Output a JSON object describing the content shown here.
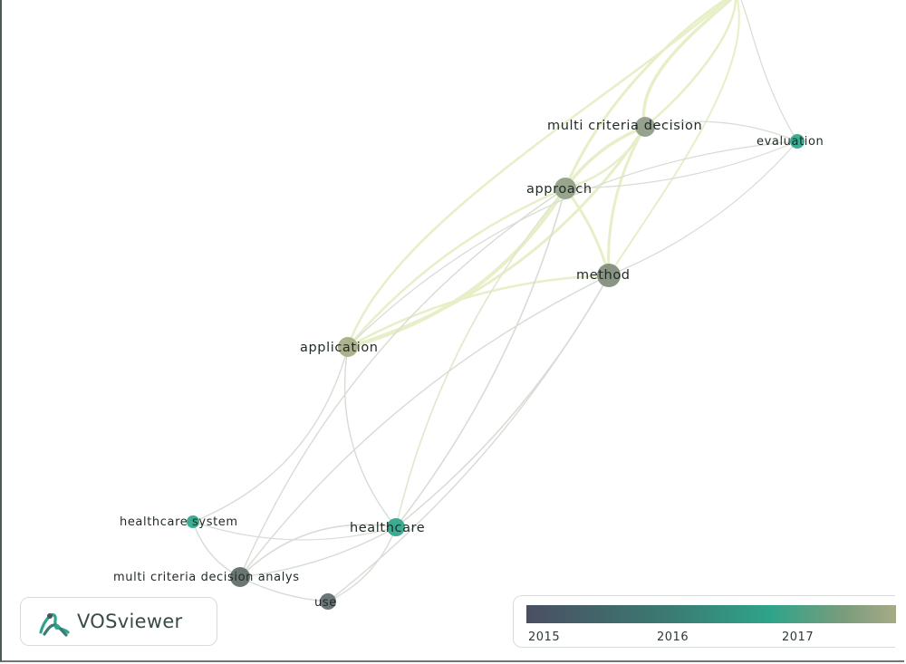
{
  "app": {
    "name": "VOSviewer"
  },
  "nodes": [
    {
      "id": "mcd",
      "label": "multi criteria decision",
      "color": "#8d9a86"
    },
    {
      "id": "eval",
      "label": "evaluation",
      "color": "#2ea48a"
    },
    {
      "id": "appr",
      "label": "approach",
      "color": "#8f9e86"
    },
    {
      "id": "meth",
      "label": "method",
      "color": "#7f8c7b"
    },
    {
      "id": "appl",
      "label": "application",
      "color": "#a6ab86"
    },
    {
      "id": "hsys",
      "label": "healthcare system",
      "color": "#2ea48a"
    },
    {
      "id": "hc",
      "label": "healthcare",
      "color": "#2ea48a"
    },
    {
      "id": "mcda",
      "label": "multi criteria decision analys",
      "color": "#5d6b66"
    },
    {
      "id": "use",
      "label": "use",
      "color": "#606a6d"
    }
  ],
  "legend": {
    "ticks": [
      "2015",
      "2016",
      "2017"
    ],
    "gradient_colors": [
      "#4a4f62",
      "#3b7a72",
      "#2ea48a",
      "#a6ab86"
    ]
  },
  "colors": {
    "link_recent": "#e7efc8",
    "link_old": "#d7dcd4",
    "label_text": "#1f2a24"
  }
}
